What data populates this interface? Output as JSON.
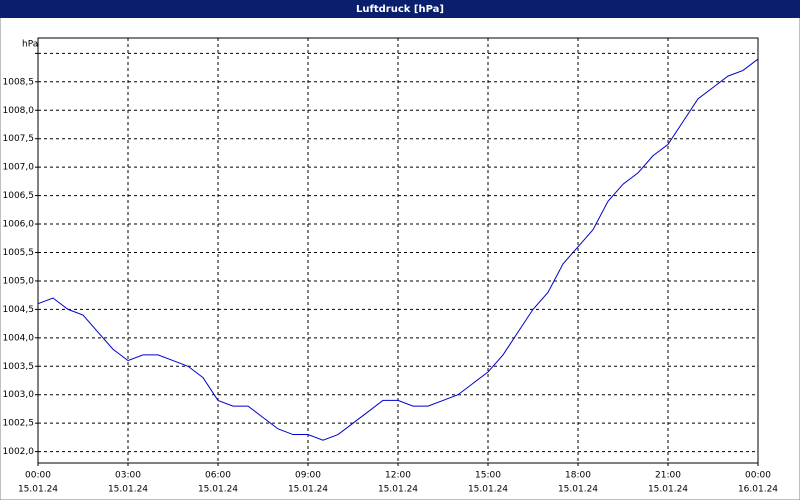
{
  "chart_data": {
    "type": "line",
    "title": "Luftdruck [hPa]",
    "y_axis_label": "hPa",
    "x": [
      0,
      0.5,
      1,
      1.5,
      2,
      2.5,
      3,
      3.5,
      4,
      4.5,
      5,
      5.5,
      6,
      6.5,
      7,
      7.5,
      8,
      8.5,
      9,
      9.5,
      10,
      10.5,
      11,
      11.5,
      12,
      12.5,
      13,
      13.5,
      14,
      14.5,
      15,
      15.5,
      16,
      16.5,
      17,
      17.5,
      18,
      18.5,
      19,
      19.5,
      20,
      20.5,
      21,
      21.5,
      22,
      22.5,
      23,
      23.5,
      24
    ],
    "series": [
      {
        "name": "Luftdruck",
        "color": "#0000cc",
        "values": [
          1004.6,
          1004.7,
          1004.5,
          1004.4,
          1004.1,
          1003.8,
          1003.6,
          1003.7,
          1003.7,
          1003.6,
          1003.5,
          1003.3,
          1002.9,
          1002.8,
          1002.8,
          1002.6,
          1002.4,
          1002.3,
          1002.3,
          1002.2,
          1002.3,
          1002.5,
          1002.7,
          1002.9,
          1002.9,
          1002.8,
          1002.8,
          1002.9,
          1003.0,
          1003.2,
          1003.4,
          1003.7,
          1004.1,
          1004.5,
          1004.8,
          1005.3,
          1005.6,
          1005.9,
          1006.4,
          1006.7,
          1006.9,
          1007.2,
          1007.4,
          1007.8,
          1008.2,
          1008.4,
          1008.6,
          1008.7,
          1008.9
        ]
      }
    ],
    "xlim": [
      0,
      24
    ],
    "xticks": [
      {
        "value": 0,
        "label": "00:00"
      },
      {
        "value": 3,
        "label": "03:00"
      },
      {
        "value": 6,
        "label": "06:00"
      },
      {
        "value": 9,
        "label": "09:00"
      },
      {
        "value": 12,
        "label": "12:00"
      },
      {
        "value": 15,
        "label": "15:00"
      },
      {
        "value": 18,
        "label": "18:00"
      },
      {
        "value": 21,
        "label": "21:00"
      },
      {
        "value": 24,
        "label": "00:00"
      }
    ],
    "xtick_dates": [
      "15.01.24",
      "15.01.24",
      "15.01.24",
      "15.01.24",
      "15.01.24",
      "15.01.24",
      "15.01.24",
      "15.01.24",
      "16.01.24"
    ],
    "ylim": [
      1001.8,
      1009.27
    ],
    "yticks": [
      {
        "value": 1002,
        "label": "1002,0"
      },
      {
        "value": 1002.5,
        "label": "1002,5"
      },
      {
        "value": 1003,
        "label": "1003,0"
      },
      {
        "value": 1003.5,
        "label": "1003,5"
      },
      {
        "value": 1004,
        "label": "1004,0"
      },
      {
        "value": 1004.5,
        "label": "1004,5"
      },
      {
        "value": 1005,
        "label": "1005,0"
      },
      {
        "value": 1005.5,
        "label": "1005,5"
      },
      {
        "value": 1006,
        "label": "1006,0"
      },
      {
        "value": 1006.5,
        "label": "1006,5"
      },
      {
        "value": 1007,
        "label": "1007,0"
      },
      {
        "value": 1007.5,
        "label": "1007,5"
      },
      {
        "value": 1008,
        "label": "1008,0"
      },
      {
        "value": 1008.5,
        "label": "1008,5"
      },
      {
        "value": 1009,
        "label": ""
      }
    ],
    "grid": true
  }
}
